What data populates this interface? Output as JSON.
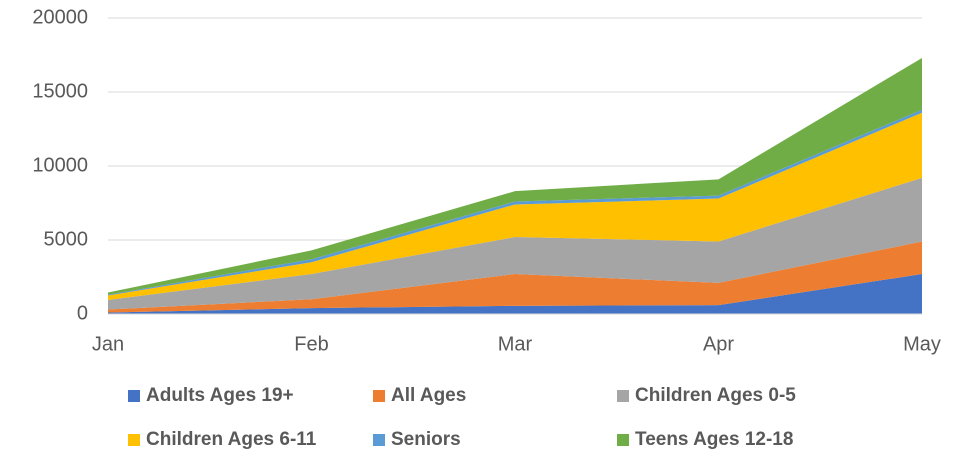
{
  "chart_data": {
    "type": "stacked_area",
    "categories": [
      "Jan",
      "Feb",
      "Mar",
      "Apr",
      "May"
    ],
    "series": [
      {
        "name": "Adults Ages 19+",
        "color": "#4472c4",
        "values": [
          100,
          400,
          550,
          600,
          2700
        ]
      },
      {
        "name": "All Ages",
        "color": "#ed7d31",
        "values": [
          200,
          600,
          2150,
          1500,
          2200
        ]
      },
      {
        "name": "Children Ages 0-5",
        "color": "#a5a5a5",
        "values": [
          650,
          1700,
          2500,
          2800,
          4300
        ]
      },
      {
        "name": "Children Ages 6-11",
        "color": "#ffc000",
        "values": [
          300,
          800,
          2200,
          2900,
          4400
        ]
      },
      {
        "name": "Seniors",
        "color": "#5b9bd5",
        "values": [
          50,
          200,
          200,
          200,
          200
        ]
      },
      {
        "name": "Teens Ages 12-18",
        "color": "#70ad47",
        "values": [
          150,
          600,
          700,
          1100,
          3500
        ]
      }
    ],
    "ylim": [
      0,
      20000
    ],
    "yticks": [
      0,
      5000,
      10000,
      15000,
      20000
    ],
    "grid": true
  }
}
